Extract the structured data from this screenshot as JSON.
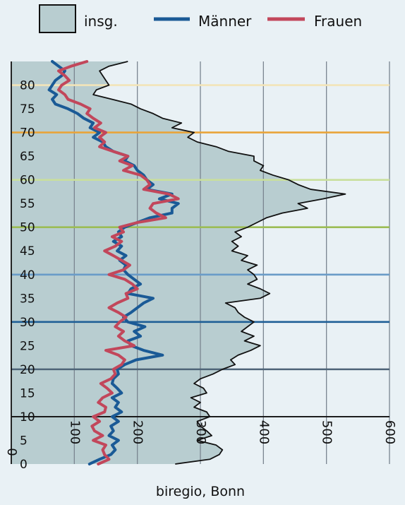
{
  "legend": {
    "total_label": "insg.",
    "men_label": "Männer",
    "women_label": "Frauen"
  },
  "source": "biregio, Bonn",
  "chart_data": {
    "type": "area",
    "orientation": "horizontal",
    "title": "",
    "xlabel": "",
    "ylabel": "",
    "xlim": [
      0,
      600
    ],
    "ylim": [
      0,
      85
    ],
    "x_ticks": [
      0,
      100,
      200,
      300,
      400,
      500,
      600
    ],
    "y_ticks": [
      0,
      5,
      10,
      15,
      20,
      25,
      30,
      35,
      40,
      45,
      50,
      55,
      60,
      65,
      70,
      75,
      80
    ],
    "grid": true,
    "colors": {
      "total_fill": "#b8cdd0",
      "total_line": "#111111",
      "men": "#1a5a96",
      "women": "#c2475b",
      "grid": "#7a8590"
    },
    "highlight_lines": [
      {
        "age": 20,
        "color": "#4e6478"
      },
      {
        "age": 30,
        "color": "#1f5f96"
      },
      {
        "age": 40,
        "color": "#6a9cc8"
      },
      {
        "age": 50,
        "color": "#9cbd55"
      },
      {
        "age": 60,
        "color": "#c9df9c"
      },
      {
        "age": 70,
        "color": "#e9a43a"
      },
      {
        "age": 80,
        "color": "#f2e4b8"
      }
    ],
    "series": [
      {
        "name": "insg.",
        "key": "total",
        "ages": [
          0,
          1,
          2,
          3,
          4,
          5,
          6,
          7,
          8,
          9,
          10,
          11,
          12,
          13,
          14,
          15,
          16,
          17,
          18,
          19,
          20,
          21,
          22,
          23,
          24,
          25,
          26,
          27,
          28,
          29,
          30,
          31,
          32,
          33,
          34,
          35,
          36,
          37,
          38,
          39,
          40,
          41,
          42,
          43,
          44,
          45,
          46,
          47,
          48,
          49,
          50,
          51,
          52,
          53,
          54,
          55,
          56,
          57,
          58,
          59,
          60,
          61,
          62,
          63,
          64,
          65,
          66,
          67,
          68,
          69,
          70,
          71,
          72,
          73,
          74,
          75,
          76,
          77,
          78,
          79,
          80,
          81,
          82,
          83,
          84,
          85
        ],
        "values": [
          260,
          315,
          330,
          335,
          325,
          295,
          318,
          310,
          300,
          295,
          315,
          310,
          290,
          300,
          285,
          310,
          305,
          290,
          300,
          320,
          335,
          355,
          348,
          360,
          380,
          395,
          370,
          385,
          365,
          375,
          385,
          370,
          360,
          355,
          340,
          395,
          410,
          395,
          375,
          390,
          385,
          375,
          390,
          365,
          375,
          350,
          360,
          350,
          365,
          355,
          375,
          390,
          405,
          430,
          470,
          455,
          495,
          530,
          475,
          455,
          440,
          415,
          395,
          400,
          385,
          385,
          345,
          325,
          295,
          280,
          290,
          255,
          270,
          240,
          225,
          205,
          190,
          160,
          130,
          135,
          155,
          150,
          145,
          140,
          155,
          185
        ]
      },
      {
        "name": "Männer",
        "key": "men",
        "ages": [
          0,
          1,
          2,
          3,
          4,
          5,
          6,
          7,
          8,
          9,
          10,
          11,
          12,
          13,
          14,
          15,
          16,
          17,
          18,
          19,
          20,
          21,
          22,
          23,
          24,
          25,
          26,
          27,
          28,
          29,
          30,
          31,
          32,
          33,
          34,
          35,
          36,
          37,
          38,
          39,
          40,
          41,
          42,
          43,
          44,
          45,
          46,
          47,
          48,
          49,
          50,
          51,
          52,
          53,
          54,
          55,
          56,
          57,
          58,
          59,
          60,
          61,
          62,
          63,
          64,
          65,
          66,
          67,
          68,
          69,
          70,
          71,
          72,
          73,
          74,
          75,
          76,
          77,
          78,
          79,
          80,
          81,
          82,
          83,
          84,
          85
        ],
        "values": [
          124,
          140,
          158,
          165,
          160,
          170,
          155,
          162,
          158,
          170,
          160,
          175,
          165,
          170,
          160,
          175,
          168,
          160,
          162,
          170,
          168,
          180,
          198,
          240,
          210,
          190,
          185,
          205,
          195,
          212,
          185,
          178,
          190,
          200,
          210,
          225,
          185,
          190,
          205,
          195,
          185,
          178,
          182,
          172,
          182,
          168,
          175,
          162,
          175,
          170,
          180,
          200,
          220,
          255,
          255,
          265,
          235,
          255,
          215,
          225,
          215,
          210,
          200,
          195,
          180,
          185,
          162,
          150,
          145,
          130,
          140,
          125,
          130,
          115,
          105,
          90,
          70,
          65,
          72,
          60,
          65,
          70,
          80,
          85,
          75,
          65
        ]
      },
      {
        "name": "Frauen",
        "key": "women",
        "ages": [
          0,
          1,
          2,
          3,
          4,
          5,
          6,
          7,
          8,
          9,
          10,
          11,
          12,
          13,
          14,
          15,
          16,
          17,
          18,
          19,
          20,
          21,
          22,
          23,
          24,
          25,
          26,
          27,
          28,
          29,
          30,
          31,
          32,
          33,
          34,
          35,
          36,
          37,
          38,
          39,
          40,
          41,
          42,
          43,
          44,
          45,
          46,
          47,
          48,
          49,
          50,
          51,
          52,
          53,
          54,
          55,
          56,
          57,
          58,
          59,
          60,
          61,
          62,
          63,
          64,
          65,
          66,
          67,
          68,
          69,
          70,
          71,
          72,
          73,
          74,
          75,
          76,
          77,
          78,
          79,
          80,
          81,
          82,
          83,
          84,
          85
        ],
        "values": [
          138,
          155,
          148,
          145,
          150,
          130,
          145,
          132,
          128,
          140,
          130,
          148,
          150,
          138,
          145,
          160,
          152,
          142,
          158,
          165,
          162,
          175,
          180,
          170,
          150,
          195,
          180,
          170,
          178,
          165,
          172,
          182,
          170,
          155,
          168,
          185,
          182,
          200,
          192,
          180,
          155,
          178,
          188,
          175,
          162,
          148,
          165,
          175,
          160,
          178,
          172,
          200,
          245,
          230,
          220,
          225,
          265,
          250,
          210,
          220,
          215,
          205,
          178,
          192,
          172,
          185,
          162,
          140,
          148,
          140,
          150,
          132,
          142,
          130,
          120,
          125,
          110,
          90,
          85,
          75,
          80,
          92,
          85,
          75,
          95,
          120
        ]
      }
    ]
  }
}
